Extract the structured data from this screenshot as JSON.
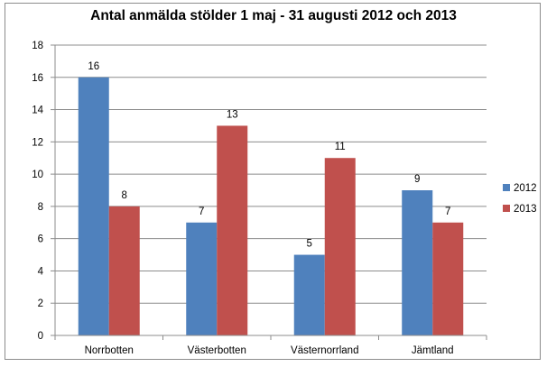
{
  "chart_data": {
    "type": "bar",
    "title": "Antal anmälda stölder 1 maj - 31 augusti 2012 och 2013",
    "categories": [
      "Norrbotten",
      "Västerbotten",
      "Västernorrland",
      "Jämtland"
    ],
    "series": [
      {
        "name": "2012",
        "values": [
          16,
          7,
          5,
          9
        ],
        "color": "#4f81bd"
      },
      {
        "name": "2013",
        "values": [
          8,
          13,
          11,
          7
        ],
        "color": "#c0504d"
      }
    ],
    "ylim": [
      0,
      18
    ],
    "yticks": [
      0,
      2,
      4,
      6,
      8,
      10,
      12,
      14,
      16,
      18
    ],
    "grid": true,
    "legend": "right"
  }
}
